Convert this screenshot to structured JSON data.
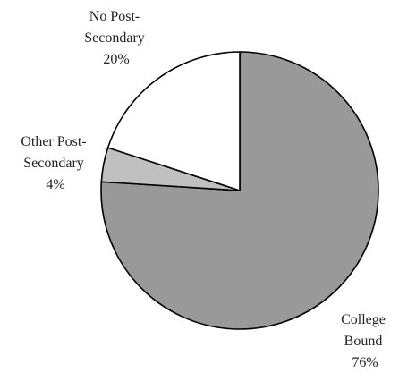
{
  "chart_data": {
    "type": "pie",
    "title": "",
    "start_angle_deg": 0,
    "direction": "clockwise",
    "slices": [
      {
        "label_lines": [
          "College",
          "Bound"
        ],
        "percent_label": "76%",
        "value": 76,
        "color": "#999999"
      },
      {
        "label_lines": [
          "Other Post-",
          "Secondary"
        ],
        "percent_label": "4%",
        "value": 4,
        "color": "#c0c0c0"
      },
      {
        "label_lines": [
          "No Post-",
          "Secondary"
        ],
        "percent_label": "20%",
        "value": 20,
        "color": "#ffffff"
      }
    ]
  }
}
